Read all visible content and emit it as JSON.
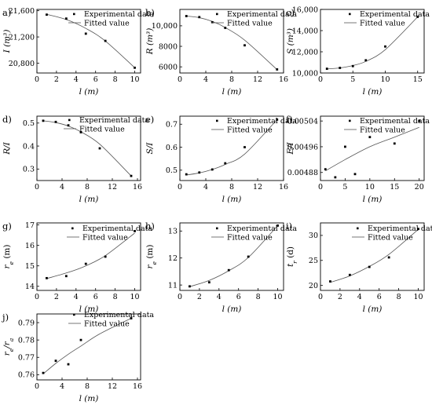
{
  "chart_data": [
    {
      "type": "scatter",
      "panel_label": "a)",
      "xlabel": "l (m)",
      "ylabel": "I (m³)",
      "xlim": [
        0,
        10.6
      ],
      "ylim": [
        20650,
        21620
      ],
      "xticks": [
        0,
        2,
        4,
        6,
        8,
        10
      ],
      "yticks": [
        20800,
        21200,
        21600
      ],
      "ytick_labels": [
        "20,800",
        "21,200",
        "21,600"
      ],
      "legend": [
        "Experimental data",
        "Fitted value"
      ],
      "series": [
        {
          "name": "Experimental data",
          "x": [
            1,
            3,
            5,
            7,
            10
          ],
          "y": [
            21540,
            21480,
            21250,
            21140,
            20730
          ]
        },
        {
          "name": "Fitted value",
          "x": [
            1,
            3,
            5,
            7,
            10
          ],
          "y": [
            21545,
            21466,
            21330,
            21137,
            20732
          ]
        }
      ]
    },
    {
      "type": "scatter",
      "panel_label": "b)",
      "xlabel": "l (m)",
      "ylabel": "R (m³)",
      "xlim": [
        0,
        16
      ],
      "ylim": [
        5400,
        11600
      ],
      "xticks": [
        0,
        4,
        8,
        12,
        16
      ],
      "yticks": [
        6000,
        8000,
        10000
      ],
      "ytick_labels": [
        "6000",
        "8000",
        "10,000"
      ],
      "legend": [
        "Experimental data",
        "Fitted value"
      ],
      "series": [
        {
          "name": "Experimental data",
          "x": [
            1,
            3,
            5,
            7,
            10,
            15
          ],
          "y": [
            10950,
            10850,
            10350,
            9800,
            8100,
            5750
          ]
        },
        {
          "name": "Fitted value",
          "x": [
            1,
            3,
            5,
            7,
            10,
            15
          ],
          "y": [
            10950,
            10800,
            10430,
            9830,
            8600,
            5720
          ]
        }
      ]
    },
    {
      "type": "scatter",
      "panel_label": "c)",
      "xlabel": "l (m)",
      "ylabel": "S (m³)",
      "xlim": [
        0,
        16
      ],
      "ylim": [
        10000,
        16000
      ],
      "xticks": [
        0,
        5,
        10,
        15
      ],
      "yticks": [
        10000,
        12000,
        14000,
        16000
      ],
      "ytick_labels": [
        "10,000",
        "12,000",
        "14,000",
        "16,000"
      ],
      "legend": [
        "Experimental data",
        "Fitted value"
      ],
      "series": [
        {
          "name": "Experimental data",
          "x": [
            1,
            3,
            5,
            7,
            10,
            15
          ],
          "y": [
            10400,
            10480,
            10650,
            11200,
            12500,
            15300
          ]
        },
        {
          "name": "Fitted value",
          "x": [
            1,
            3,
            5,
            7,
            10,
            15
          ],
          "y": [
            10380,
            10480,
            10700,
            11100,
            12200,
            15300
          ]
        }
      ]
    },
    {
      "type": "scatter",
      "panel_label": "d)",
      "xlabel": "l (m)",
      "ylabel": "R/I",
      "xlim": [
        0,
        16.5
      ],
      "ylim": [
        0.25,
        0.53
      ],
      "xticks": [
        0,
        4,
        8,
        12,
        16
      ],
      "yticks": [
        0.3,
        0.4,
        0.5
      ],
      "ytick_labels": [
        "0.3",
        "0.4",
        "0.5"
      ],
      "legend": [
        "Experimental data",
        "Fitted value"
      ],
      "series": [
        {
          "name": "Experimental data",
          "x": [
            1,
            3,
            5,
            7,
            10,
            15
          ],
          "y": [
            0.51,
            0.505,
            0.49,
            0.46,
            0.39,
            0.27
          ]
        },
        {
          "name": "Fitted value",
          "x": [
            1,
            3,
            5,
            7,
            10,
            15
          ],
          "y": [
            0.51,
            0.502,
            0.487,
            0.462,
            0.408,
            0.27
          ]
        }
      ]
    },
    {
      "type": "scatter",
      "panel_label": "e)",
      "xlabel": "l (m)",
      "ylabel": "S/I",
      "xlim": [
        0,
        16
      ],
      "ylim": [
        0.455,
        0.735
      ],
      "xticks": [
        0,
        4,
        8,
        12,
        16
      ],
      "yticks": [
        0.5,
        0.6,
        0.7
      ],
      "ytick_labels": [
        "0.5",
        "0.6",
        "0.7"
      ],
      "legend": [
        "Experimental data",
        "Fitted value"
      ],
      "series": [
        {
          "name": "Experimental data",
          "x": [
            1,
            3,
            5,
            7,
            10,
            15
          ],
          "y": [
            0.482,
            0.49,
            0.503,
            0.53,
            0.6,
            0.72
          ]
        },
        {
          "name": "Fitted value",
          "x": [
            1,
            3,
            5,
            7,
            10,
            15
          ],
          "y": [
            0.479,
            0.488,
            0.503,
            0.525,
            0.57,
            0.72
          ]
        }
      ]
    },
    {
      "type": "scatter",
      "panel_label": "f)",
      "xlabel": "l (m)",
      "ylabel": "E/I",
      "xlim": [
        0,
        21
      ],
      "ylim": [
        0.004855,
        0.005055
      ],
      "xticks": [
        0,
        5,
        10,
        15,
        20
      ],
      "yticks": [
        0.00488,
        0.00496,
        0.00504
      ],
      "ytick_labels": [
        "0.00488",
        "0.00496",
        "0.00504"
      ],
      "legend": [
        "Experimental data",
        "Fitted value"
      ],
      "series": [
        {
          "name": "Experimental data",
          "x": [
            1,
            3,
            5,
            7,
            10,
            15,
            20
          ],
          "y": [
            0.00489,
            0.004865,
            0.00496,
            0.004875,
            0.00499,
            0.00497,
            0.00504
          ]
        },
        {
          "name": "Fitted value",
          "x": [
            1,
            5,
            10,
            15,
            20
          ],
          "y": [
            0.004885,
            0.00492,
            0.00496,
            0.00499,
            0.00502
          ]
        }
      ]
    },
    {
      "type": "scatter",
      "panel_label": "g)",
      "xlabel": "l (m)",
      "ylabel": "r_e (m)",
      "xlim": [
        0,
        10.6
      ],
      "ylim": [
        13.8,
        17.1
      ],
      "xticks": [
        0,
        2,
        4,
        6,
        8,
        10
      ],
      "yticks": [
        14,
        15,
        16,
        17
      ],
      "ytick_labels": [
        "14",
        "15",
        "16",
        "17"
      ],
      "legend": [
        "Experimental data",
        "Fitted value"
      ],
      "series": [
        {
          "name": "Experimental data",
          "x": [
            1,
            3,
            5,
            7,
            10
          ],
          "y": [
            14.4,
            14.5,
            15.1,
            15.45,
            16.7
          ]
        },
        {
          "name": "Fitted value",
          "x": [
            1,
            3,
            5,
            7,
            10
          ],
          "y": [
            14.38,
            14.65,
            15.0,
            15.5,
            16.6
          ]
        }
      ]
    },
    {
      "type": "scatter",
      "panel_label": "h)",
      "xlabel": "l (m)",
      "ylabel": "r_e (m)",
      "xlim": [
        0,
        10.6
      ],
      "ylim": [
        10.8,
        13.3
      ],
      "xticks": [
        0,
        2,
        4,
        6,
        8,
        10
      ],
      "yticks": [
        11,
        12,
        13
      ],
      "ytick_labels": [
        "11",
        "12",
        "13"
      ],
      "legend": [
        "Experimental data",
        "Fitted value"
      ],
      "series": [
        {
          "name": "Experimental data",
          "x": [
            1,
            3,
            5,
            7,
            10
          ],
          "y": [
            10.95,
            11.1,
            11.55,
            12.05,
            13.2
          ]
        },
        {
          "name": "Fitted value",
          "x": [
            1,
            3,
            5,
            7,
            10
          ],
          "y": [
            10.94,
            11.17,
            11.53,
            12.02,
            13.2
          ]
        }
      ]
    },
    {
      "type": "scatter",
      "panel_label": "i)",
      "xlabel": "l (m)",
      "ylabel": "t_r (d)",
      "xlim": [
        0,
        10.6
      ],
      "ylim": [
        19,
        32.5
      ],
      "xticks": [
        0,
        2,
        4,
        6,
        8,
        10
      ],
      "yticks": [
        20,
        25,
        30
      ],
      "ytick_labels": [
        "20",
        "25",
        "30"
      ],
      "legend": [
        "Experimental data",
        "Fitted value"
      ],
      "series": [
        {
          "name": "Experimental data",
          "x": [
            1,
            3,
            5,
            7,
            10
          ],
          "y": [
            20.8,
            22.1,
            23.7,
            25.6,
            31.3
          ]
        },
        {
          "name": "Fitted value",
          "x": [
            1,
            3,
            5,
            7,
            10
          ],
          "y": [
            20.6,
            21.9,
            23.8,
            26.2,
            31.2
          ]
        }
      ]
    },
    {
      "type": "scatter",
      "panel_label": "j)",
      "xlabel": "l (m)",
      "ylabel": "r_e/r_a",
      "xlim": [
        0,
        16.5
      ],
      "ylim": [
        0.757,
        0.795
      ],
      "xticks": [
        0,
        4,
        8,
        12,
        16
      ],
      "yticks": [
        0.76,
        0.77,
        0.78,
        0.79
      ],
      "ytick_labels": [
        "0.76",
        "0.77",
        "0.78",
        "0.79"
      ],
      "legend": [
        "Experimental data",
        "Fitted value"
      ],
      "series": [
        {
          "name": "Experimental data",
          "x": [
            1,
            3,
            5,
            7,
            15
          ],
          "y": [
            0.761,
            0.768,
            0.766,
            0.78,
            0.7925
          ]
        },
        {
          "name": "Fitted value",
          "x": [
            1,
            3,
            5,
            7,
            10,
            15
          ],
          "y": [
            0.7605,
            0.7665,
            0.7718,
            0.7765,
            0.7835,
            0.7925
          ]
        }
      ]
    }
  ]
}
